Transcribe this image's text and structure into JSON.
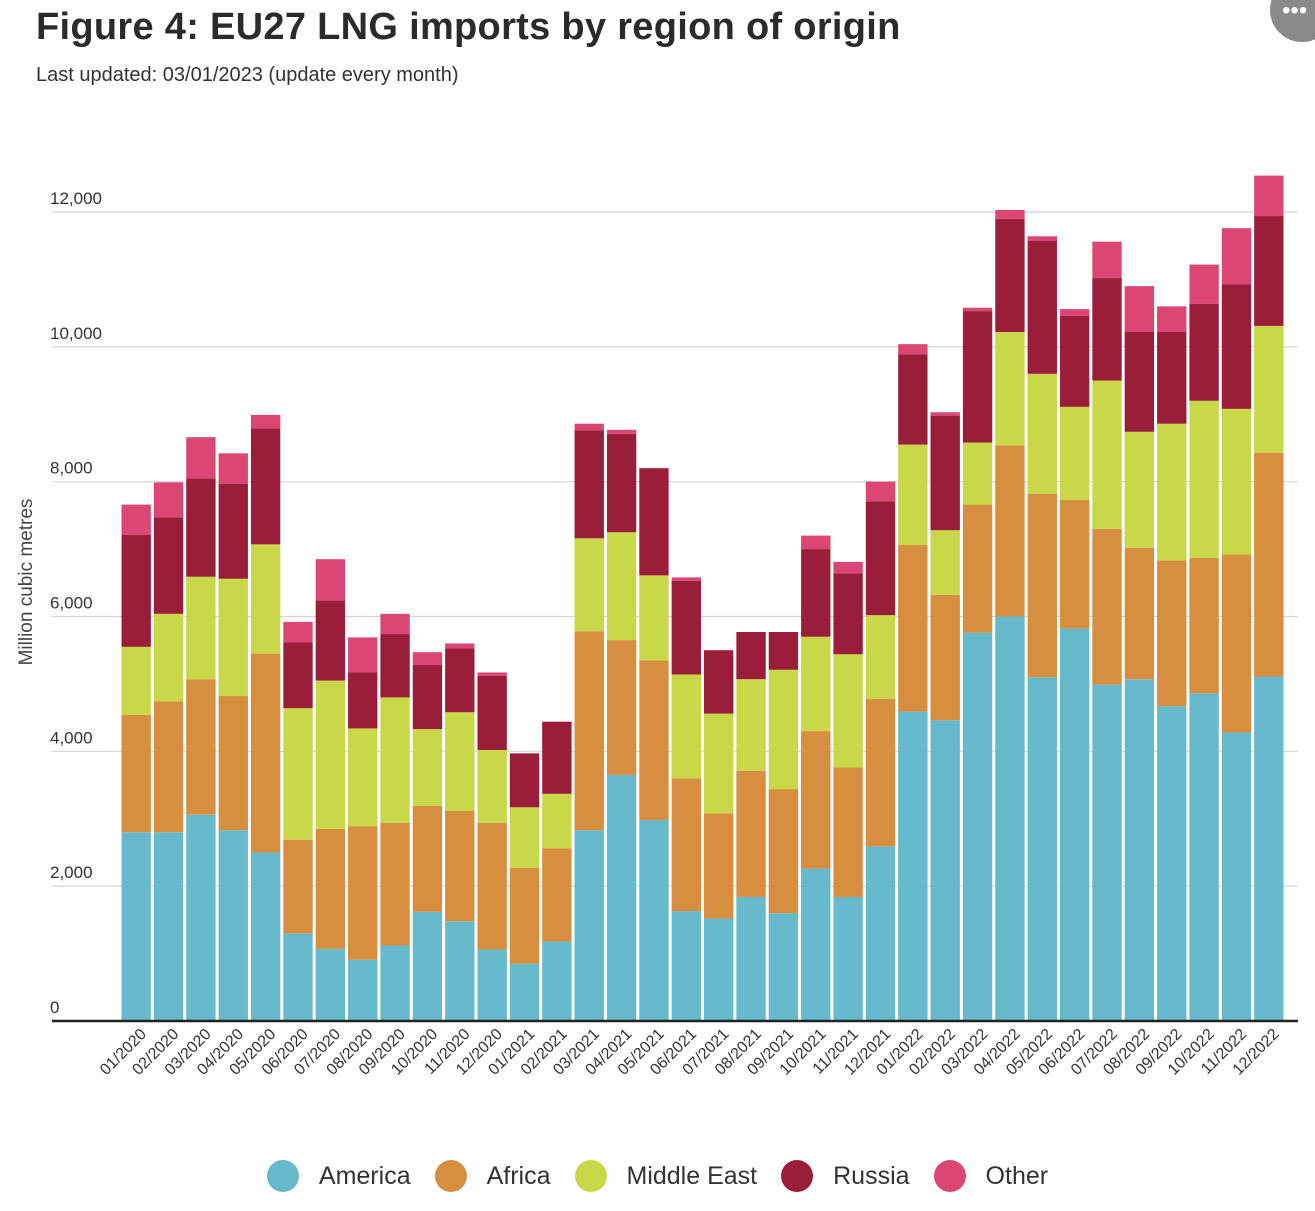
{
  "header": {
    "title": "Figure 4: EU27 LNG imports by region of origin",
    "subtitle": "Last updated: 03/01/2023 (update every month)",
    "more_icon": "more-dots-icon"
  },
  "chart_data": {
    "type": "bar",
    "stacked": true,
    "title": "Figure 4: EU27 LNG imports by region of origin",
    "subtitle": "Last updated: 03/01/2023 (update every month)",
    "xlabel": "",
    "ylabel": "Million cubic metres",
    "ylim": [
      0,
      12500
    ],
    "yticks": [
      0,
      2000,
      4000,
      6000,
      8000,
      10000,
      12000
    ],
    "ytick_labels": [
      "0",
      "2,000",
      "4,000",
      "6,000",
      "8,000",
      "10,000",
      "12,000"
    ],
    "grid": true,
    "legend_position": "bottom",
    "categories": [
      "01/2020",
      "02/2020",
      "03/2020",
      "04/2020",
      "05/2020",
      "06/2020",
      "07/2020",
      "08/2020",
      "09/2020",
      "10/2020",
      "11/2020",
      "12/2020",
      "01/2021",
      "02/2021",
      "03/2021",
      "04/2021",
      "05/2021",
      "06/2021",
      "07/2021",
      "08/2021",
      "09/2021",
      "10/2021",
      "11/2021",
      "12/2021",
      "01/2022",
      "02/2022",
      "03/2022",
      "04/2022",
      "05/2022",
      "06/2022",
      "07/2022",
      "08/2022",
      "09/2022",
      "10/2022",
      "11/2022",
      "12/2022"
    ],
    "series": [
      {
        "name": "America",
        "color": "#67b9cc",
        "values": [
          2800,
          2800,
          3060,
          2830,
          2500,
          1300,
          1070,
          910,
          1120,
          1620,
          1480,
          1060,
          850,
          1180,
          2830,
          3650,
          2980,
          1630,
          1520,
          1840,
          1600,
          2260,
          1840,
          2590,
          4590,
          4460,
          5760,
          6000,
          5100,
          5820,
          4990,
          5070,
          4670,
          4860,
          4280,
          5110
        ]
      },
      {
        "name": "Africa",
        "color": "#d88e3f",
        "values": [
          1740,
          1940,
          2010,
          1990,
          2950,
          1390,
          1780,
          1980,
          1820,
          1570,
          1640,
          1880,
          1420,
          1380,
          2950,
          2000,
          2370,
          1970,
          1560,
          1870,
          1840,
          2040,
          1920,
          2190,
          2470,
          1860,
          1900,
          2540,
          2720,
          1910,
          2310,
          1950,
          2160,
          2010,
          2640,
          3320
        ]
      },
      {
        "name": "Middle East",
        "color": "#c8d848",
        "values": [
          1010,
          1300,
          1520,
          1740,
          1620,
          1950,
          2200,
          1450,
          1860,
          1140,
          1460,
          1080,
          900,
          810,
          1380,
          1600,
          1260,
          1540,
          1480,
          1360,
          1770,
          1400,
          1680,
          1240,
          1490,
          960,
          920,
          1680,
          1780,
          1380,
          2200,
          1720,
          2030,
          2330,
          2160,
          1880
        ]
      },
      {
        "name": "Russia",
        "color": "#9a1e3a",
        "values": [
          1660,
          1430,
          1460,
          1410,
          1720,
          980,
          1190,
          830,
          940,
          950,
          950,
          1100,
          800,
          1070,
          1600,
          1460,
          1590,
          1390,
          940,
          700,
          560,
          1300,
          1200,
          1690,
          1340,
          1700,
          1950,
          1680,
          1970,
          1350,
          1520,
          1480,
          1360,
          1440,
          1850,
          1630
        ]
      },
      {
        "name": "Other",
        "color": "#dc4675",
        "values": [
          450,
          520,
          610,
          450,
          200,
          300,
          610,
          520,
          300,
          190,
          70,
          50,
          0,
          0,
          100,
          60,
          0,
          50,
          0,
          0,
          0,
          200,
          170,
          290,
          150,
          50,
          50,
          130,
          70,
          100,
          540,
          680,
          380,
          580,
          830,
          600
        ]
      }
    ]
  },
  "legend": {
    "items": [
      {
        "label": "America",
        "color": "#67b9cc"
      },
      {
        "label": "Africa",
        "color": "#d88e3f"
      },
      {
        "label": "Middle East",
        "color": "#c8d848"
      },
      {
        "label": "Russia",
        "color": "#9a1e3a"
      },
      {
        "label": "Other",
        "color": "#dc4675"
      }
    ]
  }
}
